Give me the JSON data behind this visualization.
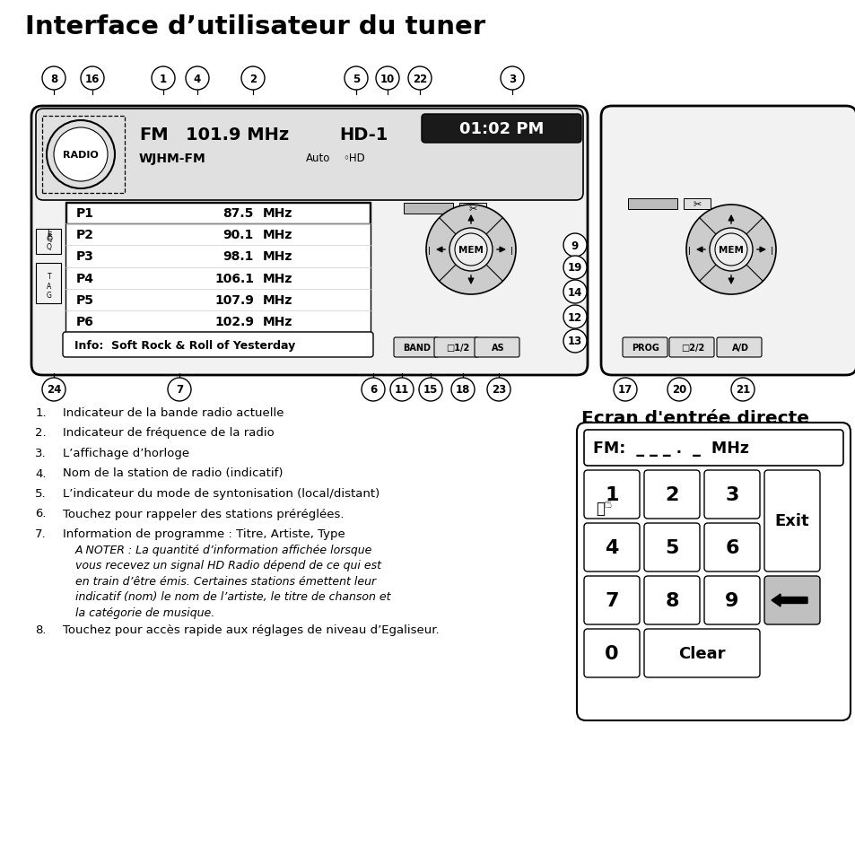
{
  "title": "Interface d’utilisateur du tuner",
  "bg_color": "#ffffff",
  "time_text": "01:02 PM",
  "band_text": "FM",
  "freq_text": "101.9 MHz",
  "hd_text": "HD-1",
  "station_text": "WJHM-FM",
  "auto_text": "Auto",
  "hd_sub": "◦HD",
  "presets": [
    [
      "P1",
      "87.5",
      "MHz"
    ],
    [
      "P2",
      "90.1",
      "MHz"
    ],
    [
      "P3",
      "98.1",
      "MHz"
    ],
    [
      "P4",
      "106.1",
      "MHz"
    ],
    [
      "P5",
      "107.9",
      "MHz"
    ],
    [
      "P6",
      "102.9",
      "MHz"
    ]
  ],
  "info_text": "Info:  Soft Rock & Roll of Yesterday",
  "keypad_title": "Ecran d'entrée directe",
  "keypad_fm_display": "FM:  _ _ _ .  _  MHz",
  "list_items": [
    "Indicateur de la bande radio actuelle",
    "Indicateur de fréquence de la radio",
    "L’affichage d’horloge",
    "Nom de la station de radio (indicatif)",
    "L’indicateur du mode de syntonisation (local/distant)",
    "Touchez pour rappeler des stations préréglées.",
    "Information de programme : Titre, Artiste, Type",
    "Touchez pour accès rapide aux réglages de niveau d’Egaliseur."
  ],
  "italic_lines": [
    "A NOTER : La quantité d’information affichée lorsque",
    "vous recevez un signal HD Radio dépend de ce qui est",
    "en train d’être émis. Certaines stations émettent leur",
    "indicatif (nom) le nom de l’artiste, le titre de chanson et",
    "la catégorie de musique."
  ],
  "top_circles": [
    [
      60,
      "8"
    ],
    [
      103,
      "16"
    ],
    [
      182,
      "1"
    ],
    [
      220,
      "4"
    ],
    [
      282,
      "2"
    ],
    [
      397,
      "5"
    ],
    [
      432,
      "10"
    ],
    [
      468,
      "22"
    ],
    [
      571,
      "3"
    ]
  ],
  "bot_circles_left": [
    [
      60,
      "24"
    ],
    [
      200,
      "7"
    ],
    [
      416,
      "6"
    ],
    [
      448,
      "11"
    ],
    [
      480,
      "15"
    ],
    [
      516,
      "18"
    ],
    [
      556,
      "23"
    ]
  ],
  "right_side_circles": [
    [
      641,
      680,
      "9"
    ],
    [
      641,
      655,
      "19"
    ],
    [
      641,
      628,
      "14"
    ],
    [
      641,
      600,
      "12"
    ],
    [
      641,
      573,
      "13"
    ]
  ],
  "bot_circles_right": [
    [
      697,
      519,
      "17"
    ],
    [
      757,
      519,
      "20"
    ],
    [
      828,
      519,
      "21"
    ]
  ]
}
